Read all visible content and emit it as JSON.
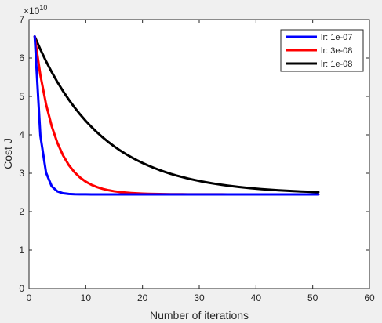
{
  "chart_data": {
    "type": "line",
    "xlabel": "Number of iterations",
    "ylabel": "Cost J",
    "y_multiplier": "×10",
    "y_exponent": "10",
    "xlim": [
      0,
      60
    ],
    "ylim": [
      0,
      7
    ],
    "x_ticks": [
      0,
      10,
      20,
      30,
      40,
      50,
      60
    ],
    "y_ticks": [
      0,
      1,
      2,
      3,
      4,
      5,
      6,
      7
    ],
    "x_tick_labels": [
      "0",
      "10",
      "20",
      "30",
      "40",
      "50",
      "60"
    ],
    "y_tick_labels": [
      "0",
      "1",
      "2",
      "3",
      "4",
      "5",
      "6",
      "7"
    ],
    "grid": false,
    "legend_position": "top-right",
    "y_start": 6.56,
    "y_final": 2.45,
    "series": [
      {
        "name": "lr: 1e-07",
        "color": "#0000ff",
        "x_start": 1,
        "x_end": 51,
        "decay": 0.99
      },
      {
        "name": "lr: 3e-08",
        "color": "#ff0000",
        "x_start": 1,
        "x_end": 51,
        "decay": 0.28
      },
      {
        "name": "lr: 1e-08",
        "color": "#000000",
        "x_start": 1,
        "x_end": 51,
        "decay": 0.085
      }
    ]
  }
}
